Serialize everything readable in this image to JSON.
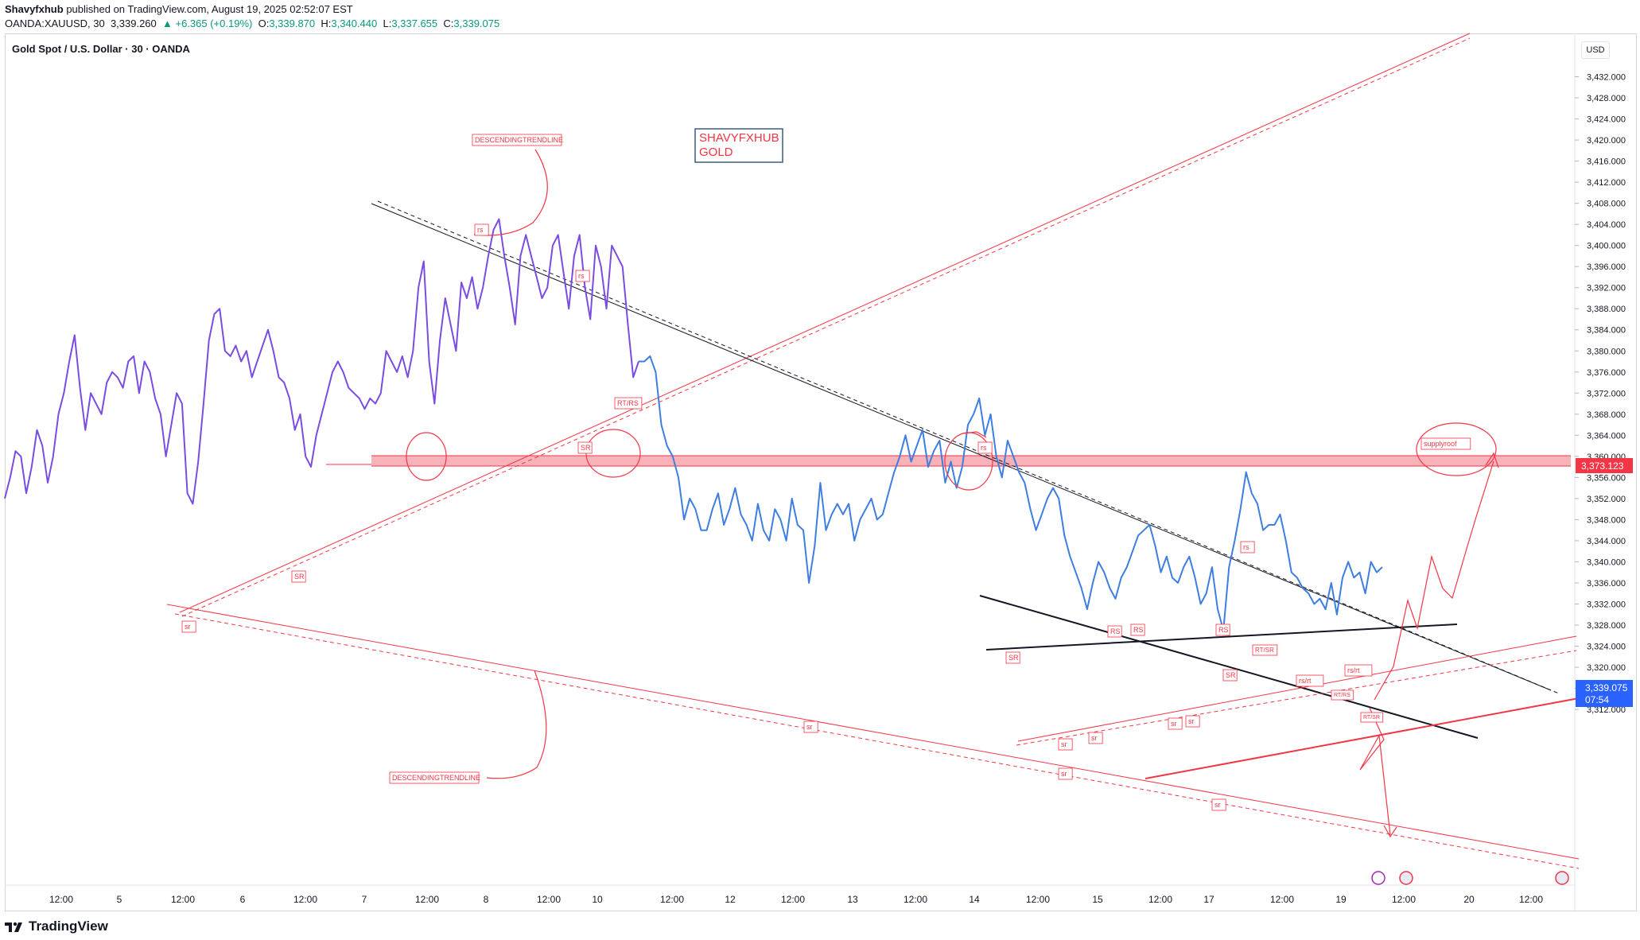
{
  "header": {
    "author": "Shavyfxhub",
    "published_text": "published on TradingView.com, August 19, 2025 02:52:07 EST",
    "symbol": "OANDA:XAUUSD, 30",
    "last": "3,339.260",
    "change": "▲ +6.365 (+0.19%)",
    "o_label": "O:",
    "o_value": "3,339.870",
    "h_label": "H:",
    "h_value": "3,340.440",
    "l_label": "L:",
    "l_value": "3,337.655",
    "c_label": "C:",
    "c_value": "3,339.075"
  },
  "legend_title": "Gold Spot / U.S. Dollar · 30 · OANDA",
  "currency": "USD",
  "footer": {
    "brand": "TradingView"
  },
  "colors": {
    "series_early": "#7b4ce0",
    "series_late": "#3d7ee0",
    "annotation_red": "#f23645",
    "trend_black": "#131722",
    "price_badge": "#2962ff",
    "zone_fill": "#f7a5ae"
  },
  "chart_data": {
    "type": "line",
    "title": "Gold Spot / U.S. Dollar · 30 · OANDA",
    "ylabel": "",
    "ylim": [
      3309,
      3435
    ],
    "y_ticks": [
      "3,312.000",
      "3,316.000",
      "3,320.000",
      "3,324.000",
      "3,328.000",
      "3,332.000",
      "3,336.000",
      "3,340.000",
      "3,344.000",
      "3,348.000",
      "3,352.000",
      "3,356.000",
      "3,360.000",
      "3,364.000",
      "3,368.000",
      "3,372.000",
      "3,376.000",
      "3,380.000",
      "3,384.000",
      "3,388.000",
      "3,392.000",
      "3,396.000",
      "3,400.000",
      "3,404.000",
      "3,408.000",
      "3,412.000",
      "3,416.000",
      "3,420.000",
      "3,424.000",
      "3,428.000",
      "3,432.000"
    ],
    "x_ticks": [
      "12:00",
      "5",
      "12:00",
      "6",
      "12:00",
      "7",
      "12:00",
      "8",
      "12:00",
      "10",
      "12:00",
      "12",
      "12:00",
      "13",
      "12:00",
      "14",
      "12:00",
      "15",
      "12:00",
      "17",
      "12:00",
      "19",
      "12:00",
      "20",
      "12:00"
    ],
    "grid": false,
    "price_labels": {
      "zone_level": "3,373.123",
      "last_price": "3,339.075",
      "countdown": "07:54"
    },
    "series": [
      {
        "values": [
          3352,
          3356,
          3361,
          3360,
          3353,
          3358,
          3365,
          3362,
          3355,
          3360,
          3368,
          3372,
          3378,
          3383,
          3373,
          3365,
          3372,
          3370,
          3368,
          3374,
          3376,
          3375,
          3373,
          3378,
          3379,
          3372,
          3378,
          3376,
          3371,
          3368,
          3360,
          3366,
          3372,
          3370,
          3353,
          3351,
          3359,
          3370,
          3382,
          3387,
          3388,
          3380,
          3379,
          3381,
          3378,
          3380,
          3375,
          3378,
          3381,
          3384,
          3380,
          3375,
          3374,
          3371,
          3365,
          3368,
          3360,
          3358,
          3364,
          3368,
          3372,
          3376,
          3378,
          3376,
          3373,
          3372,
          3371,
          3369,
          3371,
          3370,
          3372,
          3380,
          3378,
          3376,
          3379,
          3375,
          3380,
          3392,
          3397,
          3378,
          3370,
          3382,
          3390,
          3385,
          3380,
          3393,
          3390,
          3394,
          3388,
          3392,
          3398,
          3403,
          3405,
          3398,
          3392,
          3385,
          3398,
          3402,
          3398,
          3394,
          3390,
          3392,
          3400,
          3402,
          3395,
          3388,
          3398,
          3402,
          3392,
          3386,
          3400,
          3396,
          3388,
          3400,
          3398,
          3396,
          3385,
          3375,
          3378
        ]
      },
      {
        "values": [
          3378,
          3378,
          3379,
          3376,
          3366,
          3362,
          3360,
          3356,
          3348,
          3352,
          3350,
          3346,
          3346,
          3350,
          3353,
          3347,
          3350,
          3354,
          3349,
          3347,
          3344,
          3351,
          3346,
          3344,
          3350,
          3348,
          3344,
          3352,
          3347,
          3346,
          3336,
          3343,
          3355,
          3346,
          3349,
          3351,
          3349,
          3351,
          3344,
          3348,
          3350,
          3352,
          3348,
          3349,
          3353,
          3357,
          3360,
          3364,
          3359,
          3362,
          3365,
          3358,
          3361,
          3363,
          3355,
          3359,
          3354,
          3358,
          3366,
          3368,
          3371,
          3364,
          3368,
          3360,
          3356,
          3363,
          3360,
          3357,
          3355,
          3350,
          3346,
          3349,
          3352,
          3354,
          3352,
          3345,
          3341,
          3338,
          3335,
          3331,
          3336,
          3340,
          3338,
          3335,
          3333,
          3337,
          3339,
          3342,
          3345,
          3346,
          3347,
          3343,
          3338,
          3341,
          3337,
          3336,
          3339,
          3341,
          3337,
          3332,
          3334,
          3339,
          3331,
          3327,
          3339,
          3344,
          3350,
          3357,
          3353,
          3351,
          3346,
          3347,
          3347,
          3349,
          3344,
          3338,
          3337,
          3335,
          3334,
          3332,
          3333,
          3331,
          3336,
          3330,
          3337,
          3340,
          3337,
          3338,
          3334,
          3340,
          3338,
          3339
        ]
      }
    ],
    "annotations": [
      "DESCENDINGTRENDLINE",
      "DESCENDINGTRENDLINE",
      "rs",
      "rs",
      "RT/RS",
      "SR",
      "SR",
      "sr",
      "rs",
      "SR",
      "RS",
      "RS",
      "RS",
      "rs",
      "RT/SR",
      "rs/rt",
      "rs/rt",
      "RT/RS",
      "RT/SR",
      "SR",
      "sr",
      "sr",
      "sr",
      "sr",
      "sr",
      "sr",
      "sr",
      "supplyroof"
    ],
    "watermark_box": [
      "SHAVYFXHUB",
      "GOLD"
    ]
  }
}
